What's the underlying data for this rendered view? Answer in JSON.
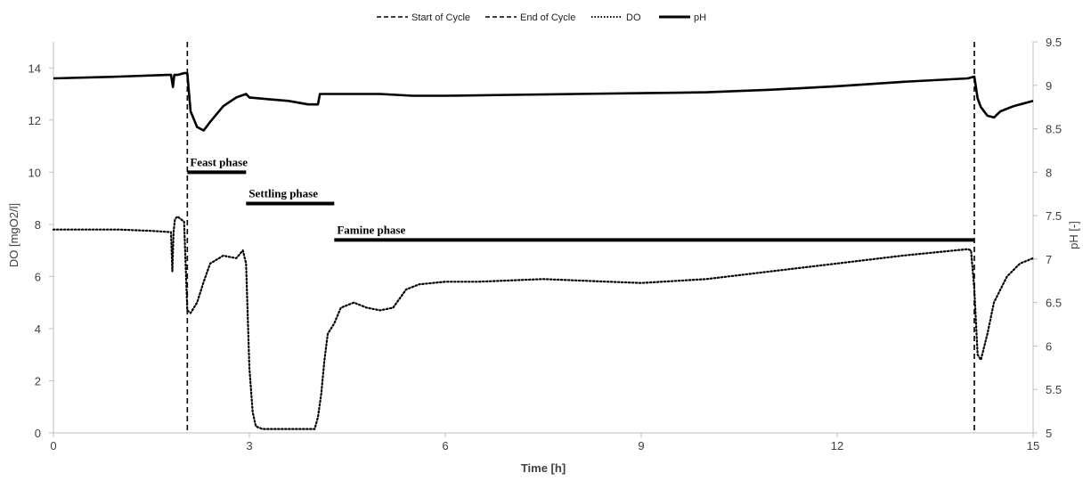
{
  "chart_data": {
    "type": "line",
    "xlabel": "Time [h]",
    "ylabel_left": "DO [mgO2/l]",
    "ylabel_right": "pH [-]",
    "xlim": [
      0,
      15
    ],
    "ylim_left": [
      0,
      15
    ],
    "ylim_right": [
      5,
      9.5
    ],
    "x_ticks": [
      0,
      3,
      6,
      9,
      12,
      15
    ],
    "y_left_ticks": [
      0,
      2,
      4,
      6,
      8,
      10,
      12,
      14
    ],
    "y_right_ticks": [
      "5",
      "5.5",
      "6",
      "6.5",
      "7",
      "7.5",
      "8",
      "8.5",
      "9",
      "9.5"
    ],
    "grid": false,
    "legend_position": "top",
    "legend": [
      {
        "name": "Start of Cycle",
        "style": "dashed"
      },
      {
        "name": "End of Cycle",
        "style": "dashed"
      },
      {
        "name": "DO",
        "style": "dotted"
      },
      {
        "name": "pH",
        "style": "solid"
      }
    ],
    "vlines": [
      {
        "name": "Start of Cycle",
        "x": 2.05
      },
      {
        "name": "End of Cycle",
        "x": 14.1
      }
    ],
    "phases": [
      {
        "label": "Feast phase",
        "x_start": 2.05,
        "x_end": 2.95,
        "y": 10.0
      },
      {
        "label": "Settling phase",
        "x_start": 2.95,
        "x_end": 4.3,
        "y": 8.8
      },
      {
        "name": "Famine phase",
        "label": "Famine phase",
        "x_start": 4.3,
        "x_end": 14.1,
        "y": 7.4
      }
    ],
    "series": [
      {
        "name": "pH",
        "axis": "right",
        "style": "solid",
        "x": [
          0,
          1.0,
          1.75,
          1.8,
          1.83,
          1.85,
          1.9,
          2.0,
          2.05,
          2.1,
          2.2,
          2.3,
          2.4,
          2.6,
          2.8,
          2.95,
          3.0,
          3.3,
          3.6,
          3.9,
          4.05,
          4.08,
          4.2,
          4.5,
          5.0,
          5.5,
          6.0,
          7.0,
          8.0,
          9.0,
          10.0,
          11.0,
          12.0,
          13.0,
          14.0,
          14.05,
          14.1,
          14.15,
          14.2,
          14.3,
          14.4,
          14.5,
          14.7,
          15.0
        ],
        "y": [
          9.08,
          9.1,
          9.12,
          9.12,
          8.98,
          9.12,
          9.12,
          9.14,
          9.14,
          8.7,
          8.52,
          8.48,
          8.58,
          8.76,
          8.86,
          8.9,
          8.86,
          8.84,
          8.82,
          8.78,
          8.78,
          8.9,
          8.9,
          8.9,
          8.9,
          8.88,
          8.88,
          8.89,
          8.9,
          8.91,
          8.92,
          8.95,
          8.99,
          9.04,
          9.08,
          9.09,
          9.1,
          8.85,
          8.75,
          8.65,
          8.63,
          8.7,
          8.76,
          8.82
        ]
      },
      {
        "name": "DO",
        "axis": "left",
        "style": "dotted",
        "x": [
          0,
          0.5,
          1.0,
          1.5,
          1.8,
          1.82,
          1.84,
          1.86,
          1.9,
          2.0,
          2.05,
          2.1,
          2.2,
          2.3,
          2.4,
          2.6,
          2.8,
          2.9,
          2.95,
          3.0,
          3.05,
          3.1,
          3.2,
          3.5,
          3.8,
          4.0,
          4.05,
          4.1,
          4.15,
          4.2,
          4.3,
          4.4,
          4.6,
          4.8,
          5.0,
          5.2,
          5.4,
          5.6,
          6.0,
          6.5,
          7.0,
          7.5,
          8.0,
          8.5,
          9.0,
          10.0,
          11.0,
          12.0,
          13.0,
          14.0,
          14.05,
          14.1,
          14.15,
          14.2,
          14.3,
          14.4,
          14.5,
          14.6,
          14.8,
          15.0
        ],
        "y": [
          7.8,
          7.8,
          7.8,
          7.75,
          7.7,
          6.2,
          7.7,
          8.2,
          8.3,
          8.1,
          4.7,
          4.6,
          5.0,
          5.8,
          6.5,
          6.8,
          6.7,
          7.0,
          6.5,
          2.5,
          0.8,
          0.25,
          0.15,
          0.15,
          0.15,
          0.15,
          0.6,
          1.5,
          2.8,
          3.8,
          4.2,
          4.8,
          5.0,
          4.8,
          4.7,
          4.8,
          5.5,
          5.7,
          5.8,
          5.8,
          5.85,
          5.9,
          5.85,
          5.8,
          5.75,
          5.9,
          6.2,
          6.5,
          6.8,
          7.05,
          7.0,
          5.5,
          3.0,
          2.8,
          3.8,
          5.0,
          5.5,
          6.0,
          6.5,
          6.7
        ]
      }
    ]
  }
}
